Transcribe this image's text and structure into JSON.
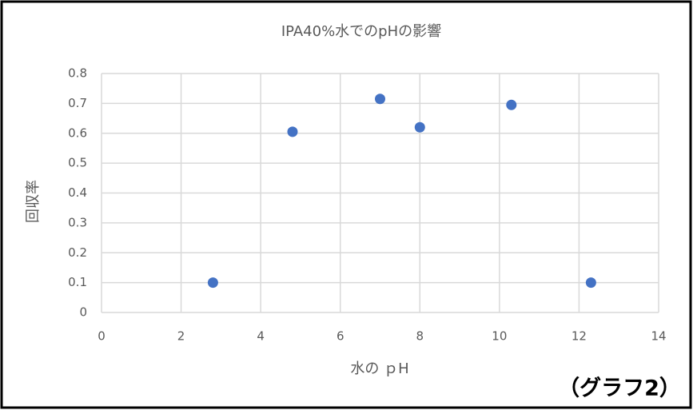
{
  "chart_data": {
    "type": "scatter",
    "title": "IPA40%水でのpHの影響",
    "x_label": "水の ｐH",
    "y_label": "回収率",
    "annotation": "（グラフ2）",
    "x": [
      2.8,
      4.8,
      7.0,
      8.0,
      10.3,
      12.3
    ],
    "values": [
      0.1,
      0.605,
      0.715,
      0.62,
      0.695,
      0.1
    ],
    "color": "#4472c4",
    "xlim": [
      0,
      14
    ],
    "xticks": [
      0,
      2,
      4,
      6,
      8,
      10,
      12,
      14
    ],
    "ylim": [
      0,
      0.8
    ],
    "yticks": [
      0,
      0.1,
      0.2,
      0.3,
      0.4,
      0.5,
      0.6,
      0.7,
      0.8
    ],
    "grid": true
  }
}
